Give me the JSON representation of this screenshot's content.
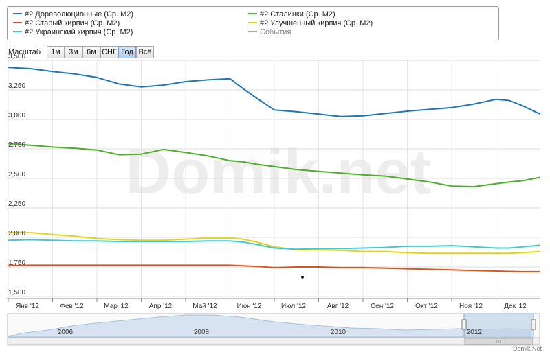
{
  "legend": {
    "items": [
      {
        "label": "#2 Дореволюционные (Ср. М2)",
        "color": "#1f77b4"
      },
      {
        "label": "#2 Старый кирпич (Ср. М2)",
        "color": "#e0521a"
      },
      {
        "label": "#2 Украинский кирпич (Ср. М2)",
        "color": "#3fc8d8"
      },
      {
        "label": "#2 Сталинки (Ср. М2)",
        "color": "#4caf2a"
      },
      {
        "label": "#2 Улучшенный кирпич (Ср. М2)",
        "color": "#e5d21a"
      },
      {
        "label": "События",
        "color": "#aaaaaa"
      }
    ]
  },
  "toolbar": {
    "scale_label": "Масштаб",
    "zoom_buttons": [
      "1м",
      "3м",
      "6м",
      "СНГ",
      "Год",
      "Всё"
    ],
    "active": "Год"
  },
  "watermark": "Domik.net",
  "credit": "Domik.Net",
  "navigator": {
    "years": [
      "2006",
      "2008",
      "2010",
      "2012"
    ],
    "selected": "2012"
  },
  "chart_data": {
    "type": "line",
    "x_ticks": [
      "Янв '12",
      "Фев '12",
      "Мар '12",
      "Апр '12",
      "Май '12",
      "Июн '12",
      "Июл '12",
      "Авг '12",
      "Сен '12",
      "Окт '12",
      "Ноя '12",
      "Дек '12"
    ],
    "y_ticks": [
      "1,500",
      "1,750",
      "2,000",
      "2,250",
      "2,500",
      "2,750",
      "3,000",
      "3,250",
      "3,500"
    ],
    "ylim": [
      1500,
      3500
    ],
    "xlim": [
      0,
      12
    ],
    "grid": true,
    "legend_position": "top",
    "x": [
      0,
      0.5,
      1,
      1.5,
      2,
      2.5,
      3,
      3.5,
      4,
      4.5,
      5,
      5.3,
      5.6,
      6,
      6.5,
      7,
      7.5,
      8,
      8.5,
      9,
      9.5,
      10,
      10.5,
      11,
      11.3,
      11.6,
      12
    ],
    "series": [
      {
        "name": "#2 Дореволюционные (Ср. М2)",
        "color": "#1f77b4",
        "values": [
          3440,
          3430,
          3405,
          3385,
          3355,
          3300,
          3275,
          3290,
          3320,
          3335,
          3345,
          3260,
          3180,
          3080,
          3065,
          3045,
          3025,
          3030,
          3050,
          3070,
          3085,
          3100,
          3130,
          3170,
          3160,
          3115,
          3045
        ]
      },
      {
        "name": "#2 Сталинки (Ср. М2)",
        "color": "#4caf2a",
        "values": [
          2795,
          2780,
          2765,
          2755,
          2740,
          2700,
          2705,
          2745,
          2720,
          2690,
          2650,
          2640,
          2620,
          2600,
          2575,
          2560,
          2545,
          2530,
          2520,
          2495,
          2470,
          2435,
          2430,
          2455,
          2470,
          2480,
          2510
        ]
      },
      {
        "name": "#2 Улучшенный кирпич (Ср. М2)",
        "color": "#e5d21a",
        "values": [
          2040,
          2040,
          2025,
          2010,
          1990,
          1980,
          1975,
          1975,
          1985,
          1995,
          1995,
          1985,
          1960,
          1920,
          1895,
          1895,
          1890,
          1880,
          1880,
          1870,
          1865,
          1865,
          1865,
          1865,
          1865,
          1870,
          1880
        ]
      },
      {
        "name": "#2 Украинский кирпич (Ср. М2)",
        "color": "#3fc8d8",
        "values": [
          1975,
          1980,
          1975,
          1970,
          1970,
          1965,
          1965,
          1965,
          1965,
          1970,
          1970,
          1960,
          1940,
          1910,
          1900,
          1905,
          1905,
          1910,
          1915,
          1925,
          1925,
          1930,
          1920,
          1910,
          1910,
          1920,
          1935
        ]
      },
      {
        "name": "#2 Старый кирпич (Ср. М2)",
        "color": "#e0521a",
        "values": [
          1760,
          1765,
          1765,
          1765,
          1765,
          1765,
          1765,
          1765,
          1765,
          1765,
          1765,
          1760,
          1755,
          1745,
          1750,
          1750,
          1745,
          1745,
          1740,
          1735,
          1730,
          1725,
          1720,
          1715,
          1712,
          1710,
          1710
        ]
      }
    ]
  }
}
